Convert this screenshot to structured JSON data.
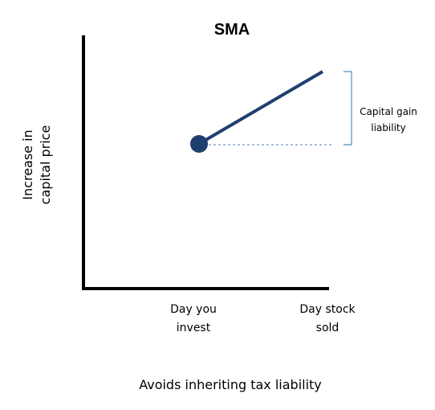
{
  "diagram": {
    "title": "SMA",
    "ylabel": [
      "Increase in",
      "capital price"
    ],
    "xticks": [
      [
        "Day you",
        "invest"
      ],
      [
        "Day stock",
        "sold"
      ]
    ],
    "bracket_label": [
      "Capital gain",
      "liability"
    ],
    "caption": "Avoids inheriting tax liability",
    "colors": {
      "line": "#1f3f6e",
      "marker": "#1f3f6e",
      "dashed": "#5a7fa8",
      "bracket": "#5a8fb0",
      "axis": "#000000"
    }
  }
}
